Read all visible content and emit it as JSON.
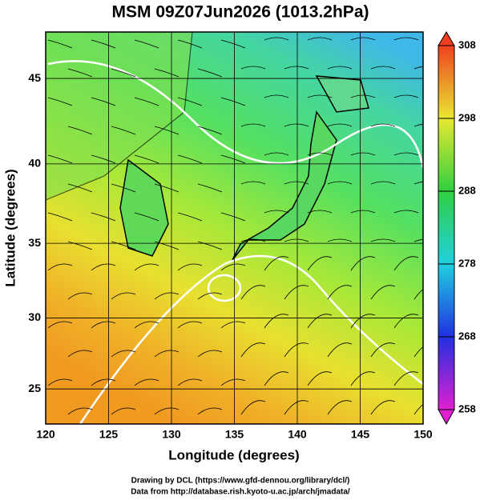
{
  "map": {
    "title": "MSM 09Z07Jun2026 (1013.2hPa)",
    "xlabel": "Longitude (degrees)",
    "ylabel": "Latitude  (degrees)",
    "xlim": [
      120,
      150
    ],
    "ylim": [
      22.45,
      47.55
    ],
    "xticks": [
      120,
      125,
      130,
      135,
      140,
      145,
      150
    ],
    "yticks": [
      25,
      30,
      35,
      40,
      45
    ]
  },
  "colorbar": {
    "lim": [
      258,
      308
    ],
    "ticks": [
      258,
      268,
      278,
      288,
      298,
      308
    ]
  },
  "footer": [
    "Drawing by DCL (https://www.gfd-dennou.org/library/dcl/)",
    "Data from http://database.rish.kyoto-u.ac.jp/arch/jmadata/"
  ]
}
